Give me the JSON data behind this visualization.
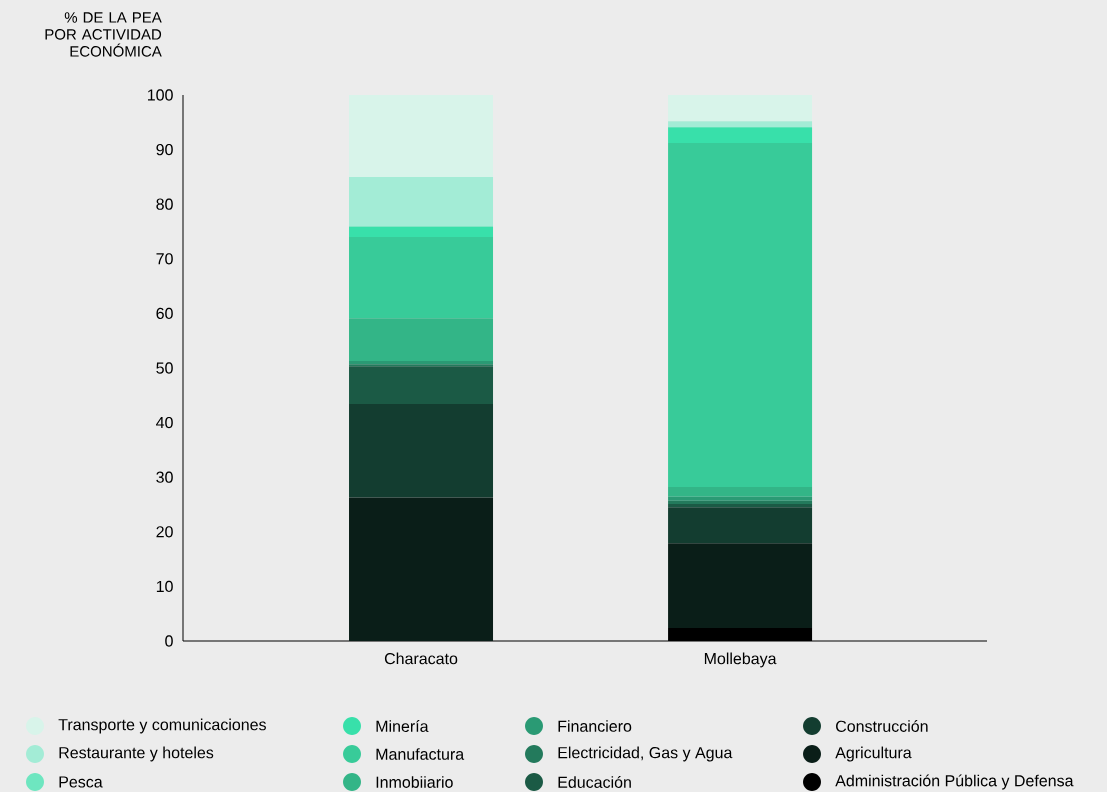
{
  "chart_data": {
    "type": "bar",
    "stacked": true,
    "ylabel": "% DE LA PEA POR ACTIVIDAD ECONÓMICA",
    "categories": [
      "Characato",
      "Mollebaya"
    ],
    "series": [
      {
        "name": "Administración Pública y Defensa",
        "color": "#000000",
        "values": [
          0,
          2.4
        ]
      },
      {
        "name": "Agricultura",
        "color": "#0a1e18",
        "values": [
          26.3,
          15.5
        ]
      },
      {
        "name": "Construcción",
        "color": "#133d30",
        "values": [
          17.1,
          6.6
        ]
      },
      {
        "name": "Educación",
        "color": "#1b5a45",
        "values": [
          6.9,
          0.6
        ]
      },
      {
        "name": "Electricidad, Gas y Agua",
        "color": "#237a5c",
        "values": [
          0.4,
          0.6
        ]
      },
      {
        "name": "Financiero",
        "color": "#2a9a74",
        "values": [
          0.6,
          0.7
        ]
      },
      {
        "name": "Inmobiiario",
        "color": "#33b587",
        "values": [
          7.8,
          1.8
        ]
      },
      {
        "name": "Manufactura",
        "color": "#38cb99",
        "values": [
          14.9,
          63
        ]
      },
      {
        "name": "Minería",
        "color": "#38e0aa",
        "values": [
          1.9,
          2.9
        ]
      },
      {
        "name": "Pesca",
        "color": "#6ee6c0",
        "values": [
          0,
          0
        ]
      },
      {
        "name": "Restaurante y hoteles",
        "color": "#a3ecd6",
        "values": [
          9.1,
          1.1
        ]
      },
      {
        "name": "Transporte y comunicaciones",
        "color": "#d8f4ea",
        "values": [
          15,
          4.8
        ]
      }
    ],
    "ylim": [
      0,
      100
    ],
    "yticks": [
      0,
      10,
      20,
      30,
      40,
      50,
      60,
      70,
      80,
      90,
      100
    ],
    "grid": false,
    "legend": "bottom"
  }
}
